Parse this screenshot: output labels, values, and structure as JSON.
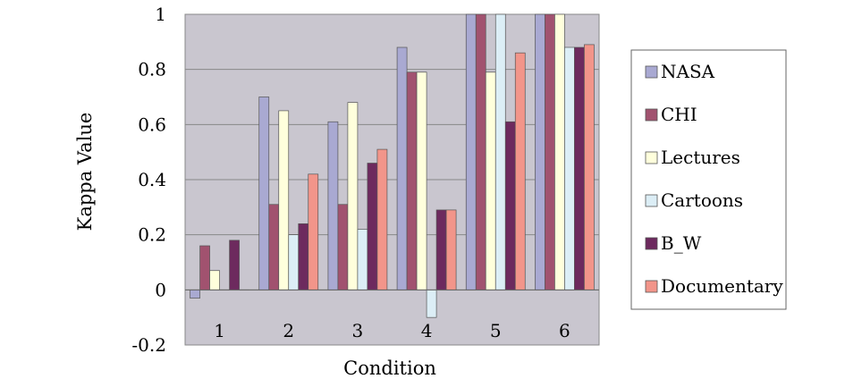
{
  "chart_data": {
    "type": "bar",
    "xlabel": "Condition",
    "ylabel": "Kappa Value",
    "categories": [
      "1",
      "2",
      "3",
      "4",
      "5",
      "6"
    ],
    "ylim": [
      -0.2,
      1
    ],
    "yticks": [
      "-0.2",
      "0",
      "0.2",
      "0.4",
      "0.6",
      "0.8",
      "1"
    ],
    "grid": "horizontal",
    "legend_position": "right",
    "series": [
      {
        "name": "NASA",
        "color": "#A9A9D2",
        "values": [
          -0.03,
          0.7,
          0.61,
          0.88,
          1.0,
          1.0
        ]
      },
      {
        "name": "CHI",
        "color": "#A1526F",
        "values": [
          0.16,
          0.31,
          0.31,
          0.79,
          1.0,
          1.0
        ]
      },
      {
        "name": "Lectures",
        "color": "#FFFFDC",
        "values": [
          0.07,
          0.65,
          0.68,
          0.79,
          0.79,
          1.0
        ]
      },
      {
        "name": "Cartoons",
        "color": "#DCEEF6",
        "values": [
          0.0,
          0.2,
          0.22,
          -0.1,
          1.0,
          0.88
        ]
      },
      {
        "name": "B_W",
        "color": "#6D2A5E",
        "values": [
          0.18,
          0.24,
          0.46,
          0.29,
          0.61,
          0.88
        ]
      },
      {
        "name": "Documentary",
        "color": "#F2958A",
        "values": [
          0.0,
          0.42,
          0.51,
          0.29,
          0.86,
          0.89
        ]
      }
    ]
  }
}
